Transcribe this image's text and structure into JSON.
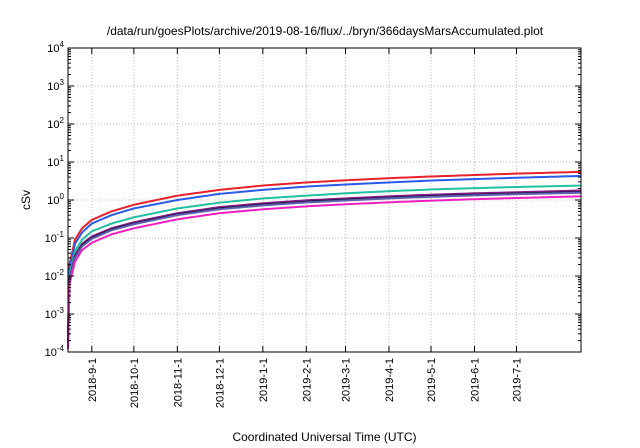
{
  "chart_data": {
    "type": "line",
    "title": "/data/run/goesPlots/archive/2019-08-16/flux/../bryn/366daysMarsAccumulated.plot",
    "xlabel": "Coordinated Universal Time (UTC)",
    "ylabel": "cSv",
    "yscale": "log",
    "ylim": [
      0.0001,
      10000
    ],
    "xlim": [
      "2018-08-15",
      "2019-08-16"
    ],
    "grid": true,
    "y_ticks": [
      {
        "base": "10",
        "exp": "-4",
        "value": 0.0001
      },
      {
        "base": "10",
        "exp": "-3",
        "value": 0.001
      },
      {
        "base": "10",
        "exp": "-2",
        "value": 0.01
      },
      {
        "base": "10",
        "exp": "-1",
        "value": 0.1
      },
      {
        "base": "10",
        "exp": "0",
        "value": 1
      },
      {
        "base": "10",
        "exp": "1",
        "value": 10
      },
      {
        "base": "10",
        "exp": "2",
        "value": 100
      },
      {
        "base": "10",
        "exp": "3",
        "value": 1000
      },
      {
        "base": "10",
        "exp": "4",
        "value": 10000
      }
    ],
    "x_ticks": [
      "2018-9-1",
      "2018-10-1",
      "2018-11-1",
      "2018-12-1",
      "2019-1-1",
      "2019-2-1",
      "2019-3-1",
      "2019-4-1",
      "2019-5-1",
      "2019-6-1",
      "2019-7-1"
    ],
    "x_tick_dates": [
      "2018-09-01",
      "2018-10-01",
      "2018-11-01",
      "2018-12-01",
      "2019-01-01",
      "2019-02-01",
      "2019-03-01",
      "2019-04-01",
      "2019-05-01",
      "2019-06-01",
      "2019-07-01"
    ],
    "x": [
      "2018-08-15",
      "2018-08-16",
      "2018-08-20",
      "2018-08-25",
      "2018-09-01",
      "2018-09-15",
      "2018-10-01",
      "2018-11-01",
      "2018-12-01",
      "2019-01-01",
      "2019-02-01",
      "2019-03-01",
      "2019-04-01",
      "2019-05-01",
      "2019-06-01",
      "2019-07-01",
      "2019-08-16"
    ],
    "series": [
      {
        "color": "#e8202a",
        "values": [
          0.0003,
          0.02,
          0.09,
          0.18,
          0.3,
          0.5,
          0.75,
          1.3,
          1.85,
          2.4,
          2.9,
          3.3,
          3.75,
          4.15,
          4.55,
          4.95,
          5.5
        ]
      },
      {
        "color": "#2a5be8",
        "values": [
          0.0002,
          0.015,
          0.07,
          0.14,
          0.24,
          0.4,
          0.6,
          1.0,
          1.45,
          1.85,
          2.25,
          2.55,
          2.9,
          3.25,
          3.55,
          3.85,
          4.3
        ]
      },
      {
        "color": "#20c0a0",
        "values": [
          0.0002,
          0.01,
          0.045,
          0.09,
          0.15,
          0.24,
          0.35,
          0.6,
          0.85,
          1.1,
          1.3,
          1.5,
          1.7,
          1.9,
          2.05,
          2.2,
          2.4
        ]
      },
      {
        "color": "#8a1a8a",
        "values": [
          0.00015,
          0.008,
          0.035,
          0.07,
          0.11,
          0.18,
          0.26,
          0.45,
          0.65,
          0.82,
          0.98,
          1.1,
          1.25,
          1.38,
          1.5,
          1.6,
          1.78
        ]
      },
      {
        "color": "#1a1a40",
        "values": [
          0.00015,
          0.0075,
          0.032,
          0.065,
          0.1,
          0.17,
          0.24,
          0.42,
          0.6,
          0.76,
          0.9,
          1.02,
          1.15,
          1.27,
          1.38,
          1.48,
          1.62
        ]
      },
      {
        "color": "#6060b0",
        "values": [
          0.00014,
          0.007,
          0.03,
          0.06,
          0.095,
          0.16,
          0.23,
          0.4,
          0.57,
          0.72,
          0.86,
          0.97,
          1.1,
          1.21,
          1.32,
          1.42,
          1.55
        ]
      },
      {
        "color": "#f020c0",
        "values": [
          0.00012,
          0.006,
          0.024,
          0.048,
          0.075,
          0.125,
          0.18,
          0.31,
          0.45,
          0.57,
          0.68,
          0.77,
          0.87,
          0.96,
          1.05,
          1.13,
          1.25
        ]
      }
    ]
  }
}
